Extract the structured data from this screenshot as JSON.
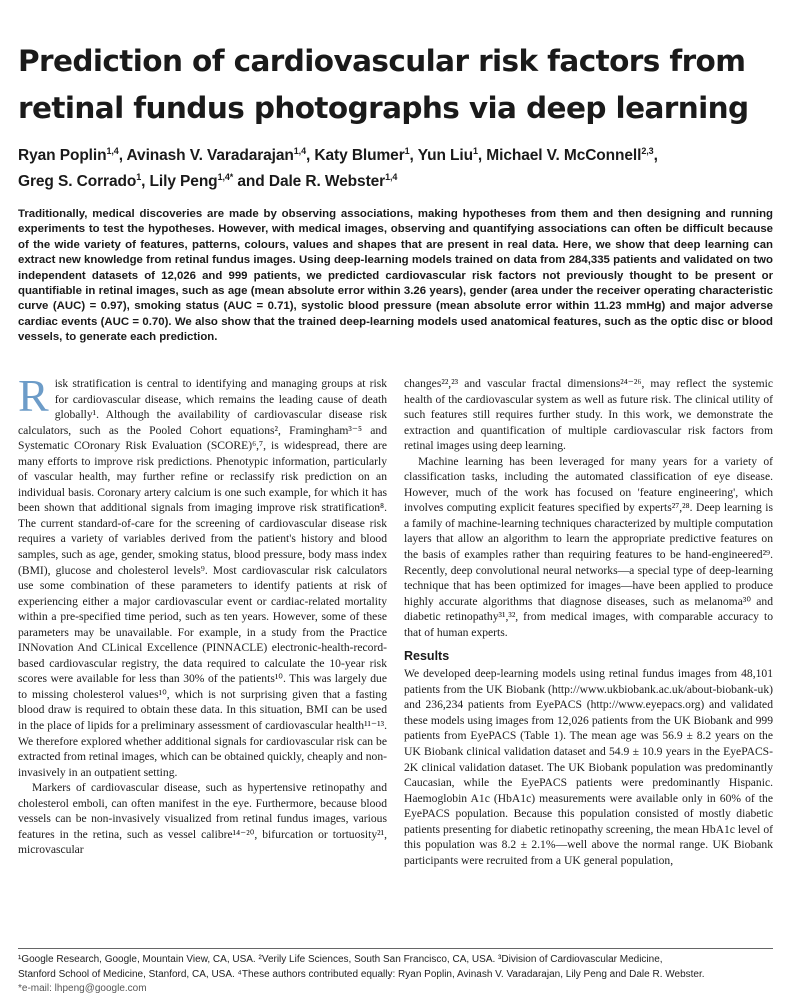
{
  "title": "Prediction of cardiovascular risk factors from retinal fundus photographs via deep learning",
  "authors": [
    {
      "name": "Ryan Poplin",
      "aff": "1,4",
      "sep": ", "
    },
    {
      "name": "Avinash V. Varadarajan",
      "aff": "1,4",
      "sep": ", "
    },
    {
      "name": "Katy Blumer",
      "aff": "1",
      "sep": ", "
    },
    {
      "name": "Yun Liu",
      "aff": "1",
      "sep": ", "
    },
    {
      "name": "Michael V. McConnell",
      "aff": "2,3",
      "sep": ","
    },
    {
      "name": "Greg S. Corrado",
      "aff": "1",
      "sep": ", "
    },
    {
      "name": "Lily Peng",
      "aff": "1,4*",
      "sep": " and "
    },
    {
      "name": "Dale R. Webster",
      "aff": "1,4",
      "sep": ""
    }
  ],
  "abstract": "Traditionally, medical discoveries are made by observing associations, making hypotheses from them and then designing and running experiments to test the hypotheses. However, with medical images, observing and quantifying associations can often be difficult because of the wide variety of features, patterns, colours, values and shapes that are present in real data. Here, we show that deep learning can extract new knowledge from retinal fundus images. Using deep-learning models trained on data from 284,335 patients and validated on two independent datasets of 12,026 and 999 patients, we predicted cardiovascular risk factors not previously thought to be present or quantifiable in retinal images, such as age (mean absolute error within 3.26 years), gender (area under the receiver operating characteristic curve (AUC) = 0.97), smoking status (AUC = 0.71), systolic blood pressure (mean absolute error within 11.23 mmHg) and major adverse cardiac events (AUC = 0.70). We also show that the trained deep-learning models used anatomical features, such as the optic disc or blood vessels, to generate each prediction.",
  "body": {
    "dropcap": "R",
    "left_col": [
      {
        "cls": "first",
        "t": "isk stratification is central to identifying and managing groups at risk for cardiovascular disease, which remains the leading cause of death globally¹. Although the availability of cardiovascular disease risk calculators, such as the Pooled Cohort equations², Framingham³⁻⁵ and Systematic COronary Risk Evaluation (SCORE)⁶,⁷, is widespread, there are many efforts to improve risk predictions. Phenotypic information, particularly of vascular health, may further refine or reclassify risk prediction on an individual basis. Coronary artery calcium is one such example, for which it has been shown that additional signals from imaging improve risk stratification⁸. The current standard-of-care for the screening of cardiovascular disease risk requires a variety of variables derived from the patient's history and blood samples, such as age, gender, smoking status, blood pressure, body mass index (BMI), glucose and cholesterol levels⁹. Most cardiovascular risk calculators use some combination of these parameters to identify patients at risk of experiencing either a major cardiovascular event or cardiac-related mortality within a pre-specified time period, such as ten years. However, some of these parameters may be unavailable. For example, in a study from the Practice INNovation And CLinical Excellence (PINNACLE) electronic-health-record-based cardiovascular registry, the data required to calculate the 10-year risk scores were available for less than 30% of the patients¹⁰. This was largely due to missing cholesterol values¹⁰, which is not surprising given that a fasting blood draw is required to obtain these data. In this situation, BMI can be used in the place of lipids for a preliminary assessment of cardiovascular health¹¹⁻¹³. We therefore explored whether additional signals for cardiovascular risk can be extracted from retinal images, which can be obtained quickly, cheaply and non-invasively in an outpatient setting."
      },
      {
        "cls": "",
        "t": "Markers of cardiovascular disease, such as hypertensive retinopathy and cholesterol emboli, can often manifest in the eye. Furthermore, because blood vessels can be non-invasively visualized from retinal fundus images, various features in the retina, such as vessel calibre¹⁴⁻²⁰, bifurcation or tortuosity²¹, microvascular"
      }
    ],
    "right_col": [
      {
        "cls": "cont",
        "t": "changes²²,²³ and vascular fractal dimensions²⁴⁻²⁶, may reflect the systemic health of the cardiovascular system as well as future risk. The clinical utility of such features still requires further study. In this work, we demonstrate the extraction and quantification of multiple cardiovascular risk factors from retinal images using deep learning."
      },
      {
        "cls": "",
        "t": "Machine learning has been leveraged for many years for a variety of classification tasks, including the automated classification of eye disease. However, much of the work has focused on 'feature engineering', which involves computing explicit features specified by experts²⁷,²⁸. Deep learning is a family of machine-learning techniques characterized by multiple computation layers that allow an algorithm to learn the appropriate predictive features on the basis of examples rather than requiring features to be hand-engineered²⁹. Recently, deep convolutional neural networks—a special type of deep-learning technique that has been optimized for images—have been applied to produce highly accurate algorithms that diagnose diseases, such as melanoma³⁰ and diabetic retinopathy³¹,³², from medical images, with comparable accuracy to that of human experts."
      }
    ],
    "results_heading": "Results",
    "results_text": "We developed deep-learning models using retinal fundus images from 48,101 patients from the UK Biobank (http://www.ukbiobank.ac.uk/about-biobank-uk) and 236,234 patients from EyePACS (http://www.eyepacs.org) and validated these models using images from 12,026 patients from the UK Biobank and 999 patients from EyePACS (Table 1). The mean age was 56.9 ± 8.2 years on the UK Biobank clinical validation dataset and 54.9 ± 10.9 years in the EyePACS-2K clinical validation dataset. The UK Biobank population was predominantly Caucasian, while the EyePACS patients were predominantly Hispanic. Haemoglobin A1c (HbA1c) measurements were available only in 60% of the EyePACS population. Because this population consisted of mostly diabetic patients presenting for diabetic retinopathy screening, the mean HbA1c level of this population was 8.2 ± 2.1%—well above the normal range. UK Biobank participants were recruited from a UK general population,"
  },
  "footnotes": {
    "line1": "¹Google Research, Google, Mountain View, CA, USA. ²Verily Life Sciences, South San Francisco, CA, USA. ³Division of Cardiovascular Medicine,",
    "line2": "Stanford School of Medicine, Stanford, CA, USA. ⁴These authors contributed equally: Ryan Poplin, Avinash V. Varadarajan, Lily Peng and Dale R. Webster.",
    "email": "*e-mail: lhpeng@google.com"
  }
}
